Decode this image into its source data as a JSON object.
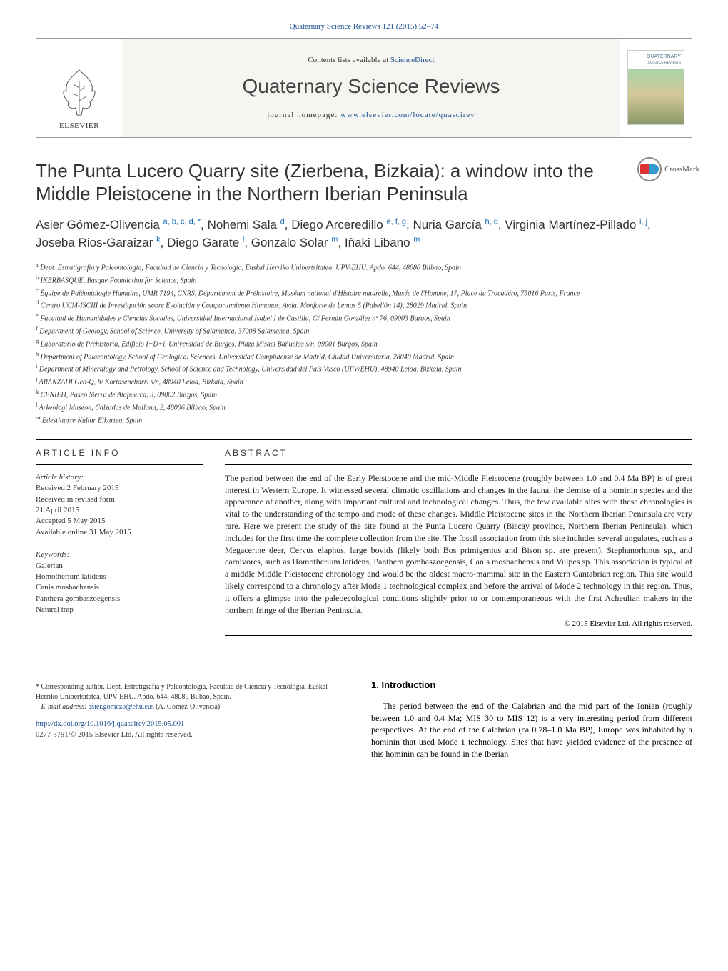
{
  "journal_ref": {
    "prefix": "Quaternary Science Reviews 121 (2015) 52",
    "dash": "–",
    "suffix": "74"
  },
  "header": {
    "contents_text": "Contents lists available at",
    "contents_link": "ScienceDirect",
    "journal_title": "Quaternary Science Reviews",
    "homepage_label": "journal homepage:",
    "homepage_url": "www.elsevier.com/locate/quascirev",
    "publisher_name": "ELSEVIER",
    "cover_label_1": "QUATERNARY",
    "cover_label_2": "SCIENCE REVIEWS"
  },
  "crossmark_label": "CrossMark",
  "title": "The Punta Lucero Quarry site (Zierbena, Bizkaia): a window into the Middle Pleistocene in the Northern Iberian Peninsula",
  "authors_html": "Asier Gómez-Olivencia <sup>a, b, c, d, *</sup>, Nohemi Sala <sup>d</sup>, Diego Arceredillo <sup>e, f, g</sup>, Nuria García <sup>h, d</sup>, Virginia Martínez-Pillado <sup>i, j</sup>, Joseba Rios-Garaizar <sup>k</sup>, Diego Garate <sup>l</sup>, Gonzalo Solar <sup>m</sup>, Iñaki Libano <sup>m</sup>",
  "affiliations": [
    {
      "key": "a",
      "text": "Dept. Estratigrafía y Paleontología, Facultad de Ciencia y Tecnología, Euskal Herriko Unibertsitatea, UPV-EHU. Apdo. 644, 48080 Bilbao, Spain"
    },
    {
      "key": "b",
      "text": "IKERBASQUE, Basque Foundation for Science, Spain"
    },
    {
      "key": "c",
      "text": "Équipe de Paléontologie Humaine, UMR 7194, CNRS, Département de Préhistoire, Muséum national d'Histoire naturelle, Musée de l'Homme, 17, Place du Trocadéro, 75016 Paris, France"
    },
    {
      "key": "d",
      "text": "Centro UCM-ISCIII de Investigación sobre Evolución y Comportamiento Humanos, Avda. Monforte de Lemos 5 (Pabellón 14), 28029 Madrid, Spain"
    },
    {
      "key": "e",
      "text": "Facultad de Humanidades y Ciencias Sociales, Universidad Internacional Isabel I de Castilla, C/ Fernán González nº 76, 09003 Burgos, Spain"
    },
    {
      "key": "f",
      "text": "Department of Geology, School of Science, University of Salamanca, 37008 Salamanca, Spain"
    },
    {
      "key": "g",
      "text": "Laboratorio de Prehistoria, Edificio I+D+i, Universidad de Burgos, Plaza Misael Bañuelos s/n, 09001 Burgos, Spain"
    },
    {
      "key": "h",
      "text": "Department of Palaeontology, School of Geological Sciences, Universidad Complutense de Madrid, Ciudad Universitaria, 28040 Madrid, Spain"
    },
    {
      "key": "i",
      "text": "Department of Mineralogy and Petrology, School of Science and Technology, Universidad del País Vasco (UPV/EHU), 48940 Leioa, Bizkaia, Spain"
    },
    {
      "key": "j",
      "text": "ARANZADI Geo-Q, b/ Kortasenebarri s/n, 48940 Leioa, Bizkaia, Spain"
    },
    {
      "key": "k",
      "text": "CENIEH, Paseo Sierra de Atapuerca, 3, 09002 Burgos, Spain"
    },
    {
      "key": "l",
      "text": "Arkeologi Museoa, Calzadas de Mallona, 2, 48006 Bilbao, Spain"
    },
    {
      "key": "m",
      "text": "Edestiaurre Kultur Elkartea, Spain"
    }
  ],
  "article_info": {
    "heading": "ARTICLE INFO",
    "history_label": "Article history:",
    "received": "Received 2 February 2015",
    "revised": "Received in revised form",
    "revised_date": "21 April 2015",
    "accepted": "Accepted 5 May 2015",
    "online": "Available online 31 May 2015",
    "keywords_label": "Keywords:",
    "keywords": [
      "Galerian",
      "Homotherium latidens",
      "Canis mosbachensis",
      "Panthera gombaszoegensis",
      "Natural trap"
    ]
  },
  "abstract": {
    "heading": "ABSTRACT",
    "text": "The period between the end of the Early Pleistocene and the mid-Middle Pleistocene (roughly between 1.0 and 0.4 Ma BP) is of great interest in Western Europe. It witnessed several climatic oscillations and changes in the fauna, the demise of a hominin species and the appearance of another, along with important cultural and technological changes. Thus, the few available sites with these chronologies is vital to the understanding of the tempo and mode of these changes. Middle Pleistocene sites in the Northern Iberian Peninsula are very rare. Here we present the study of the site found at the Punta Lucero Quarry (Biscay province, Northern Iberian Peninsula), which includes for the first time the complete collection from the site. The fossil association from this site includes several ungulates, such as a Megacerine deer, Cervus elaphus, large bovids (likely both Bos primigenius and Bison sp. are present), Stephanorhinus sp., and carnivores, such as Homotherium latidens, Panthera gombaszoegensis, Canis mosbachensis and Vulpes sp. This association is typical of a middle Middle Pleistocene chronology and would be the oldest macro-mammal site in the Eastern Cantabrian region. This site would likely correspond to a chronology after Mode 1 technological complex and before the arrival of Mode 2 technology in this region. Thus, it offers a glimpse into the paleoecological conditions slightly prior to or contemporaneous with the first Acheulian makers in the northern fringe of the Iberian Peninsula.",
    "copyright": "© 2015 Elsevier Ltd. All rights reserved."
  },
  "intro": {
    "heading": "1. Introduction",
    "text": "The period between the end of the Calabrian and the mid part of the Ionian (roughly between 1.0 and 0.4 Ma; MIS 30 to MIS 12) is a very interesting period from different perspectives. At the end of the Calabrian (ca 0.78–1.0 Ma BP), Europe was inhabited by a hominin that used Mode 1 technology. Sites that have yielded evidence of the presence of this hominin can be found in the Iberian"
  },
  "corresponding": {
    "star": "*",
    "text": "Corresponding author. Dept. Estratigrafía y Paleontología, Facultad de Ciencia y Tecnología, Euskal Herriko Unibertsitatea, UPV-EHU. Apdo. 644, 48080 Bilbao, Spain.",
    "email_label": "E-mail address:",
    "email": "asier.gomezo@ehu.eus",
    "email_name": "(A. Gómez-Olivencia)."
  },
  "doi": {
    "url": "http://dx.doi.org/10.1016/j.quascirev.2015.05.001",
    "issn": "0277-3791/© 2015 Elsevier Ltd. All rights reserved."
  },
  "colors": {
    "link": "#1a4d8f",
    "sup": "#1a6db3",
    "text": "#333333",
    "border": "#999999"
  }
}
